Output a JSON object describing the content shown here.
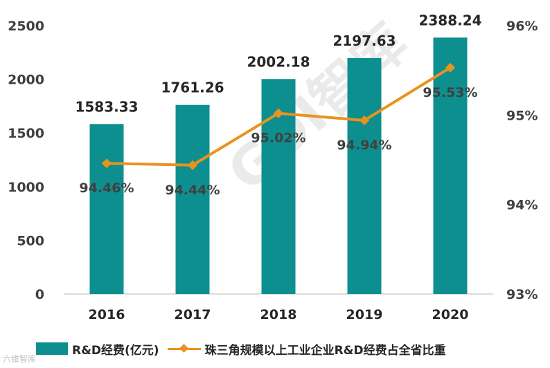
{
  "chart_data": {
    "type": "bar+line",
    "categories": [
      "2016",
      "2017",
      "2018",
      "2019",
      "2020"
    ],
    "series": [
      {
        "name": "R&D经费(亿元)",
        "type": "bar",
        "axis": "left",
        "values": [
          1583.33,
          1761.26,
          2002.18,
          2197.63,
          2388.24
        ],
        "labels": [
          "1583.33",
          "1761.26",
          "2002.18",
          "2197.63",
          "2388.24"
        ],
        "color": "#0e8f8f"
      },
      {
        "name": "珠三角规模以上工业企业R&D经费占全省比重",
        "type": "line",
        "axis": "right",
        "values": [
          94.46,
          94.44,
          95.02,
          94.94,
          95.53
        ],
        "labels": [
          "94.46%",
          "94.44%",
          "95.02%",
          "94.94%",
          "95.53%"
        ],
        "color": "#e8931e"
      }
    ],
    "left_axis": {
      "ylim": [
        0,
        2500
      ],
      "ticks": [
        "0",
        "500",
        "1000",
        "1500",
        "2000",
        "2500"
      ]
    },
    "right_axis": {
      "ylim": [
        93,
        96
      ],
      "ticks": [
        "93%",
        "94%",
        "95%",
        "96%"
      ]
    },
    "grid": false,
    "legend_position": "bottom"
  },
  "watermark": "GDI智库",
  "brand": "六维智库"
}
